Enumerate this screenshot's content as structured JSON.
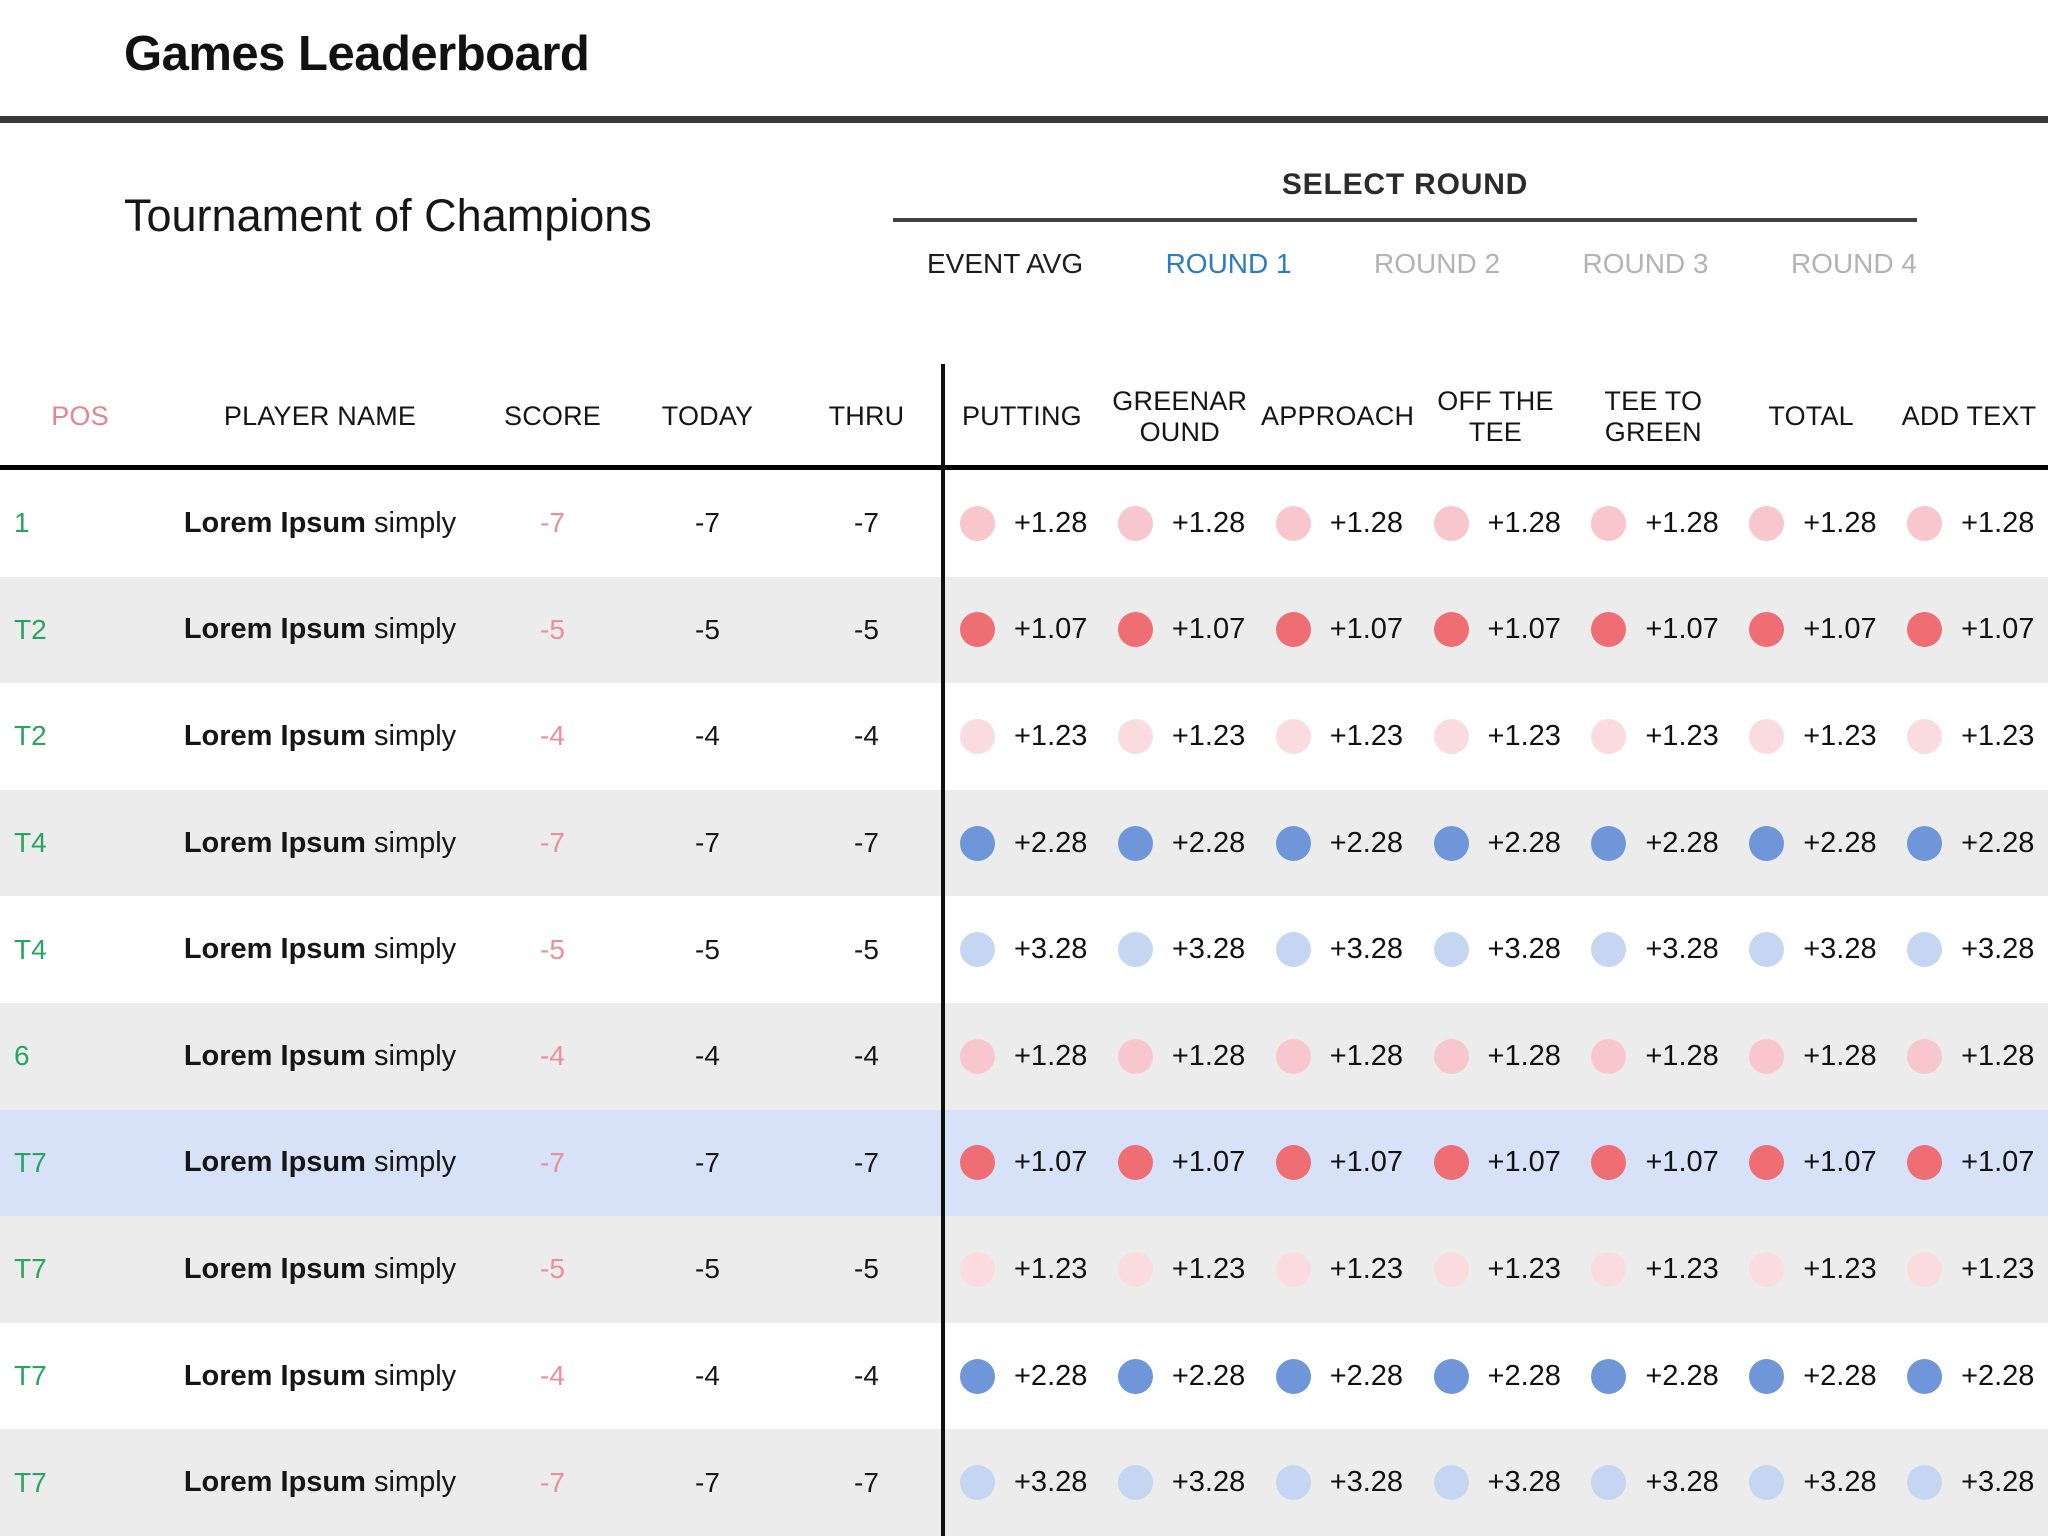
{
  "header": {
    "title": "Games Leaderboard"
  },
  "event": {
    "name": "Tournament of Champions"
  },
  "round_selector": {
    "label": "SELECT ROUND",
    "tabs": [
      {
        "label": "EVENT AVG",
        "state": "default"
      },
      {
        "label": "ROUND 1",
        "state": "active"
      },
      {
        "label": "ROUND 2",
        "state": "disabled"
      },
      {
        "label": "ROUND 3",
        "state": "disabled"
      },
      {
        "label": "ROUND 4",
        "state": "disabled"
      }
    ]
  },
  "colors": {
    "active_tab_blue": "#2a7dc0",
    "inactive_tab_gray": "#b3b3b3",
    "pos_green": "#27a45f",
    "score_pink": "#ec8f99",
    "pos_header_pink": "#e8838d",
    "row_alt_gray": "#ececec",
    "highlight_row_blue": "#d7e1f7",
    "dot_light_pink": "#f8c7cd",
    "dot_red": "#ee6e74",
    "dot_palest_pink": "#fadce0",
    "dot_blue": "#6e96d8",
    "dot_light_blue": "#c4d6f1"
  },
  "table": {
    "left_columns": [
      {
        "key": "pos",
        "label": "POS"
      },
      {
        "key": "player",
        "label": "PLAYER NAME"
      },
      {
        "key": "score",
        "label": "SCORE"
      },
      {
        "key": "today",
        "label": "TODAY"
      },
      {
        "key": "thru",
        "label": "THRU"
      }
    ],
    "stat_columns": [
      {
        "key": "putting",
        "lines": [
          "PUTTING"
        ]
      },
      {
        "key": "greenaround",
        "lines": [
          "GREENAR",
          "OUND"
        ]
      },
      {
        "key": "approach",
        "lines": [
          "APPROACH"
        ]
      },
      {
        "key": "off-the-tee",
        "lines": [
          "OFF THE",
          "TEE"
        ]
      },
      {
        "key": "tee-to-green",
        "lines": [
          "TEE TO",
          "GREEN"
        ]
      },
      {
        "key": "total",
        "lines": [
          "TOTAL"
        ]
      },
      {
        "key": "add-text",
        "lines": [
          "ADD TEXT"
        ]
      }
    ],
    "rows": [
      {
        "pos": "1",
        "player_bold": "Lorem Ipsum",
        "player_rest": " simply",
        "score": "-7",
        "today": "-7",
        "thru": "-7",
        "stat_value": "+1.28",
        "dot_color": "#f8c7cd",
        "highlight": false
      },
      {
        "pos": "T2",
        "player_bold": "Lorem Ipsum",
        "player_rest": " simply",
        "score": "-5",
        "today": "-5",
        "thru": "-5",
        "stat_value": "+1.07",
        "dot_color": "#ee6e74",
        "highlight": false
      },
      {
        "pos": "T2",
        "player_bold": "Lorem Ipsum",
        "player_rest": " simply",
        "score": "-4",
        "today": "-4",
        "thru": "-4",
        "stat_value": "+1.23",
        "dot_color": "#fadce0",
        "highlight": false
      },
      {
        "pos": "T4",
        "player_bold": "Lorem Ipsum",
        "player_rest": " simply",
        "score": "-7",
        "today": "-7",
        "thru": "-7",
        "stat_value": "+2.28",
        "dot_color": "#6e96d8",
        "highlight": false
      },
      {
        "pos": "T4",
        "player_bold": "Lorem Ipsum",
        "player_rest": " simply",
        "score": "-5",
        "today": "-5",
        "thru": "-5",
        "stat_value": "+3.28",
        "dot_color": "#c4d6f1",
        "highlight": false
      },
      {
        "pos": "6",
        "player_bold": "Lorem Ipsum",
        "player_rest": " simply",
        "score": "-4",
        "today": "-4",
        "thru": "-4",
        "stat_value": "+1.28",
        "dot_color": "#f8c7cd",
        "highlight": false
      },
      {
        "pos": "T7",
        "player_bold": "Lorem Ipsum",
        "player_rest": " simply",
        "score": "-7",
        "today": "-7",
        "thru": "-7",
        "stat_value": "+1.07",
        "dot_color": "#ee6e74",
        "highlight": true
      },
      {
        "pos": "T7",
        "player_bold": "Lorem Ipsum",
        "player_rest": " simply",
        "score": "-5",
        "today": "-5",
        "thru": "-5",
        "stat_value": "+1.23",
        "dot_color": "#fadce0",
        "highlight": false
      },
      {
        "pos": "T7",
        "player_bold": "Lorem Ipsum",
        "player_rest": " simply",
        "score": "-4",
        "today": "-4",
        "thru": "-4",
        "stat_value": "+2.28",
        "dot_color": "#6e96d8",
        "highlight": false
      },
      {
        "pos": "T7",
        "player_bold": "Lorem Ipsum",
        "player_rest": " simply",
        "score": "-7",
        "today": "-7",
        "thru": "-7",
        "stat_value": "+3.28",
        "dot_color": "#c4d6f1",
        "highlight": false
      }
    ]
  }
}
